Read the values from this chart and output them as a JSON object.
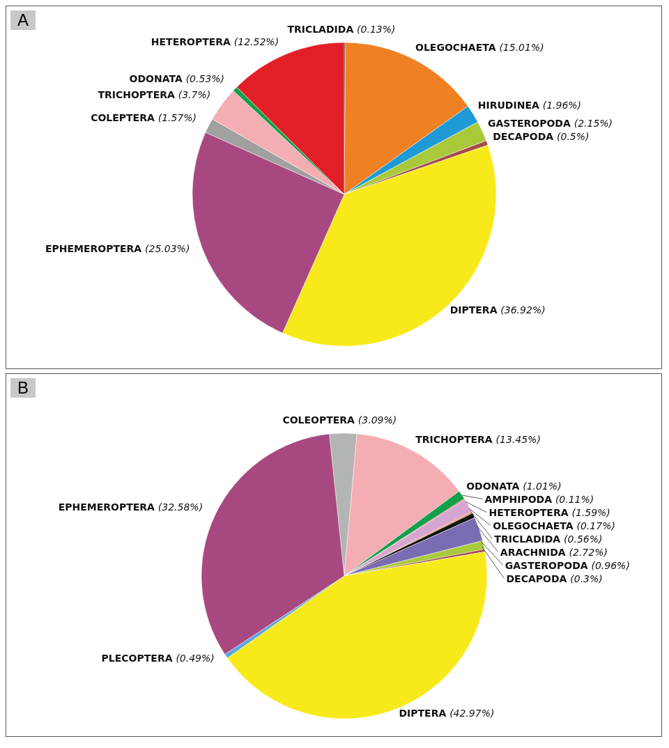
{
  "chart_data": [
    {
      "type": "pie",
      "title": "A",
      "categories": [
        "TRICLADIDA",
        "OLEGOCHAETA",
        "HIRUDINEA",
        "GASTEROPODA",
        "DECAPODA",
        "DIPTERA",
        "EPHEMEROPTERA",
        "COLEPTERA",
        "TRICHOPTERA",
        "ODONATA",
        "HETEROPTERA"
      ],
      "values": [
        0.13,
        15.01,
        1.96,
        2.15,
        0.5,
        36.92,
        25.03,
        1.57,
        3.7,
        0.53,
        12.52
      ],
      "value_labels": [
        "(0.13%)",
        "(15.01%)",
        "(1.96%)",
        "(2.15%)",
        "(0.5%)",
        "(36.92%)",
        "(25.03%)",
        "(1.57%)",
        "(3.7%)",
        "(0.53%)",
        "(12.52%)"
      ],
      "colors": [
        "#111111",
        "#ef8122",
        "#1e9ad6",
        "#a9c93a",
        "#a54a4a",
        "#f8ea1a",
        "#a84880",
        "#a0a0a0",
        "#f4adb3",
        "#12a04a",
        "#e21f26"
      ]
    },
    {
      "type": "pie",
      "title": "B",
      "categories": [
        "COLEOPTERA",
        "TRICHOPTERA",
        "ODONATA",
        "AMPHIPODA",
        "HETEROPTERA",
        "OLEGOCHAETA",
        "TRICLADIDA",
        "ARACHNIDA",
        "GASTEROPODA",
        "DECAPODA",
        "DIPTERA",
        "PLECOPTERA",
        "EPHEMEROPTERA"
      ],
      "values": [
        3.09,
        13.45,
        1.01,
        0.11,
        1.59,
        0.17,
        0.56,
        2.72,
        0.96,
        0.3,
        42.97,
        0.49,
        32.58
      ],
      "value_labels": [
        "(3.09%)",
        "(13.45%)",
        "(1.01%)",
        "(0.11%)",
        "(1.59%)",
        "(0.17%)",
        "(0.56%)",
        "(2.72%)",
        "(0.96%)",
        "(0.3%)",
        "(42.97%)",
        "(0.49%)",
        "(32.58%)"
      ],
      "colors": [
        "#b3b5b4",
        "#f4adb3",
        "#12a04a",
        "#e21f26",
        "#d7a6d0",
        "#ef8122",
        "#111111",
        "#7b6bb2",
        "#a9c93a",
        "#a54a4a",
        "#f8ea1a",
        "#5aa6dc",
        "#a84880"
      ]
    }
  ]
}
